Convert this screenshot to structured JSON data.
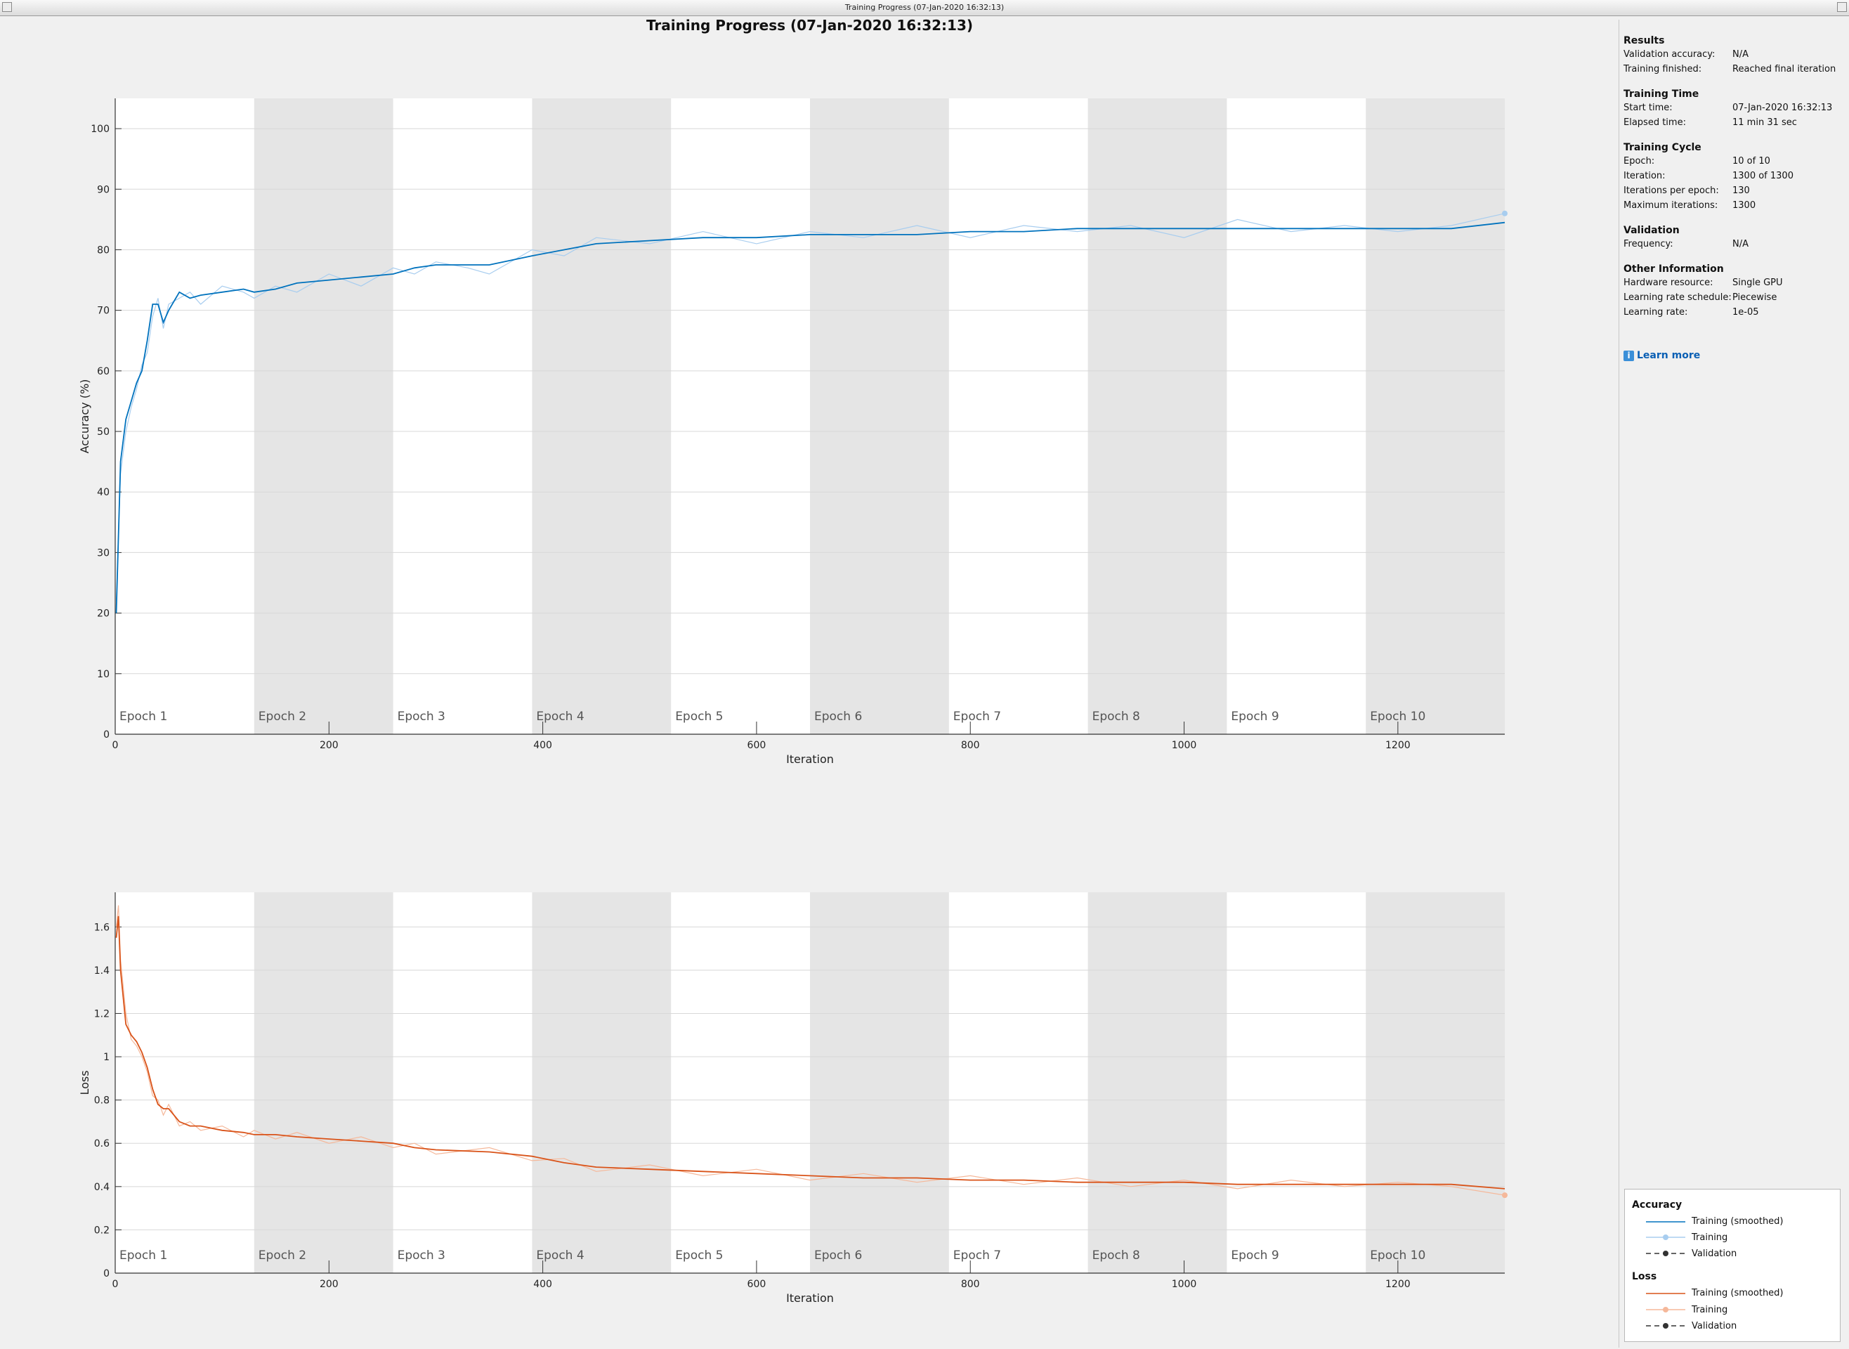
{
  "window": {
    "title": "Training Progress (07-Jan-2020 16:32:13)"
  },
  "page_title": "Training Progress (07-Jan-2020 16:32:13)",
  "colors": {
    "accuracy": "#0072bd",
    "accuracy_raw": "#a8cdef",
    "loss": "#d95319",
    "loss_raw": "#f5b89a",
    "validation": "#333333",
    "shade": "#e5e5e5"
  },
  "epoch_labels": [
    "Epoch 1",
    "Epoch 2",
    "Epoch 3",
    "Epoch 4",
    "Epoch 5",
    "Epoch 6",
    "Epoch 7",
    "Epoch 8",
    "Epoch 9",
    "Epoch 10"
  ],
  "chart_data": [
    {
      "type": "line",
      "ylabel": "Accuracy (%)",
      "xlabel": "Iteration",
      "xlim": [
        0,
        1300
      ],
      "ylim": [
        0,
        105
      ],
      "x_ticks": [
        0,
        200,
        400,
        600,
        800,
        1000,
        1200
      ],
      "y_ticks": [
        0,
        10,
        20,
        30,
        40,
        50,
        60,
        70,
        80,
        90,
        100
      ],
      "epoch_boundaries": [
        0,
        130,
        260,
        390,
        520,
        650,
        780,
        910,
        1040,
        1170,
        1300
      ],
      "grid": true,
      "series": [
        {
          "name": "Training (smoothed)",
          "x": [
            1,
            5,
            10,
            15,
            20,
            25,
            30,
            35,
            40,
            45,
            50,
            60,
            70,
            80,
            100,
            120,
            130,
            150,
            170,
            200,
            230,
            260,
            280,
            300,
            330,
            350,
            390,
            420,
            450,
            500,
            550,
            600,
            650,
            700,
            750,
            800,
            850,
            900,
            950,
            1000,
            1050,
            1100,
            1150,
            1200,
            1250,
            1300
          ],
          "values": [
            20,
            45,
            52,
            55,
            58,
            60,
            65,
            71,
            71,
            68,
            70,
            73,
            72,
            72.5,
            73,
            73.5,
            73,
            73.5,
            74.5,
            75,
            75.5,
            76,
            77,
            77.5,
            77.5,
            77.5,
            79,
            80,
            81,
            81.5,
            82,
            82,
            82.5,
            82.5,
            82.5,
            83,
            83,
            83.5,
            83.5,
            83.5,
            83.5,
            83.5,
            83.5,
            83.5,
            83.5,
            84.5
          ]
        },
        {
          "name": "Training",
          "x": [
            1,
            5,
            10,
            15,
            20,
            25,
            30,
            35,
            40,
            45,
            50,
            60,
            70,
            80,
            100,
            120,
            130,
            150,
            170,
            200,
            230,
            260,
            280,
            300,
            330,
            350,
            390,
            420,
            450,
            500,
            550,
            600,
            650,
            700,
            750,
            800,
            850,
            900,
            950,
            1000,
            1050,
            1100,
            1150,
            1200,
            1250,
            1300
          ],
          "values": [
            22,
            43,
            50,
            54,
            57,
            61,
            63,
            69,
            72,
            67,
            71,
            72,
            73,
            71,
            74,
            73,
            72,
            74,
            73,
            76,
            74,
            77,
            76,
            78,
            77,
            76,
            80,
            79,
            82,
            81,
            83,
            81,
            83,
            82,
            84,
            82,
            84,
            83,
            84,
            82,
            85,
            83,
            84,
            83,
            84,
            86
          ]
        },
        {
          "name": "Validation",
          "x": [],
          "values": []
        }
      ]
    },
    {
      "type": "line",
      "ylabel": "Loss",
      "xlabel": "Iteration",
      "xlim": [
        0,
        1300
      ],
      "ylim": [
        0,
        1.76
      ],
      "x_ticks": [
        0,
        200,
        400,
        600,
        800,
        1000,
        1200
      ],
      "y_ticks": [
        0,
        0.2,
        0.4,
        0.6,
        0.8,
        1,
        1.2,
        1.4,
        1.6
      ],
      "y_tick_labels": [
        "0",
        "0.2",
        "0.4",
        "0.6",
        "0.8",
        "1",
        "1.2",
        "1.4",
        "1.6"
      ],
      "epoch_boundaries": [
        0,
        130,
        260,
        390,
        520,
        650,
        780,
        910,
        1040,
        1170,
        1300
      ],
      "grid": true,
      "series": [
        {
          "name": "Training (smoothed)",
          "x": [
            1,
            3,
            5,
            10,
            15,
            20,
            25,
            30,
            35,
            40,
            45,
            50,
            60,
            70,
            80,
            100,
            120,
            130,
            150,
            170,
            200,
            230,
            260,
            280,
            300,
            350,
            390,
            420,
            450,
            500,
            550,
            600,
            650,
            700,
            750,
            800,
            850,
            900,
            950,
            1000,
            1050,
            1100,
            1150,
            1200,
            1250,
            1300
          ],
          "values": [
            1.55,
            1.65,
            1.4,
            1.15,
            1.1,
            1.07,
            1.02,
            0.95,
            0.85,
            0.78,
            0.76,
            0.76,
            0.7,
            0.68,
            0.68,
            0.66,
            0.65,
            0.64,
            0.64,
            0.63,
            0.62,
            0.61,
            0.6,
            0.58,
            0.57,
            0.56,
            0.54,
            0.51,
            0.49,
            0.48,
            0.47,
            0.46,
            0.45,
            0.44,
            0.44,
            0.43,
            0.43,
            0.42,
            0.42,
            0.42,
            0.41,
            0.41,
            0.41,
            0.41,
            0.41,
            0.39
          ]
        },
        {
          "name": "Training",
          "x": [
            1,
            3,
            5,
            10,
            15,
            20,
            25,
            30,
            35,
            40,
            45,
            50,
            60,
            70,
            80,
            100,
            120,
            130,
            150,
            170,
            200,
            230,
            260,
            280,
            300,
            350,
            390,
            420,
            450,
            500,
            550,
            600,
            650,
            700,
            750,
            800,
            850,
            900,
            950,
            1000,
            1050,
            1100,
            1150,
            1200,
            1250,
            1300
          ],
          "values": [
            1.6,
            1.7,
            1.45,
            1.2,
            1.08,
            1.05,
            1.0,
            0.93,
            0.82,
            0.8,
            0.73,
            0.78,
            0.68,
            0.7,
            0.66,
            0.68,
            0.63,
            0.66,
            0.62,
            0.65,
            0.6,
            0.63,
            0.58,
            0.6,
            0.55,
            0.58,
            0.52,
            0.53,
            0.47,
            0.5,
            0.45,
            0.48,
            0.43,
            0.46,
            0.42,
            0.45,
            0.41,
            0.44,
            0.4,
            0.43,
            0.39,
            0.43,
            0.4,
            0.42,
            0.4,
            0.36
          ]
        },
        {
          "name": "Validation",
          "x": [],
          "values": []
        }
      ]
    }
  ],
  "info": {
    "results": {
      "heading": "Results",
      "val_acc_label": "Validation accuracy:",
      "val_acc": "N/A",
      "finished_label": "Training finished:",
      "finished": "Reached final iteration"
    },
    "time": {
      "heading": "Training Time",
      "start_label": "Start time:",
      "start": "07-Jan-2020 16:32:13",
      "elapsed_label": "Elapsed time:",
      "elapsed": "11 min 31 sec"
    },
    "cycle": {
      "heading": "Training Cycle",
      "epoch_label": "Epoch:",
      "epoch": "10 of 10",
      "iter_label": "Iteration:",
      "iter": "1300 of 1300",
      "ipe_label": "Iterations per epoch:",
      "ipe": "130",
      "max_label": "Maximum iterations:",
      "max": "1300"
    },
    "validation": {
      "heading": "Validation",
      "freq_label": "Frequency:",
      "freq": "N/A"
    },
    "other": {
      "heading": "Other Information",
      "hw_label": "Hardware resource:",
      "hw": "Single GPU",
      "lrs_label": "Learning rate schedule:",
      "lrs": "Piecewise",
      "lr_label": "Learning rate:",
      "lr": "1e-05"
    },
    "learn_more": "Learn more"
  },
  "legend": {
    "accuracy_heading": "Accuracy",
    "loss_heading": "Loss",
    "items": [
      "Training (smoothed)",
      "Training",
      "Validation"
    ]
  }
}
